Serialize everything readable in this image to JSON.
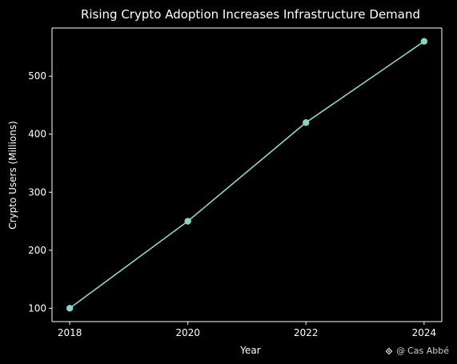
{
  "chart_data": {
    "type": "line",
    "title": "Rising Crypto Adoption Increases Infrastructure Demand",
    "xlabel": "Year",
    "ylabel": "Crypto Users (Millions)",
    "x": [
      2018,
      2020,
      2022,
      2024
    ],
    "series": [
      {
        "values": [
          100,
          250,
          420,
          560
        ]
      }
    ],
    "xlim": [
      2017.7,
      2024.3
    ],
    "ylim": [
      77,
      583
    ],
    "xticks": [
      2018,
      2020,
      2022,
      2024
    ],
    "yticks": [
      100,
      200,
      300,
      400,
      500
    ],
    "grid": false,
    "legend": "none",
    "background_color": "#000000",
    "line_color": "#8dd3c7",
    "marker": "circle"
  },
  "watermark": {
    "handle": "@",
    "name": "Cas Abbé",
    "icon": "binance-diamond-icon"
  }
}
